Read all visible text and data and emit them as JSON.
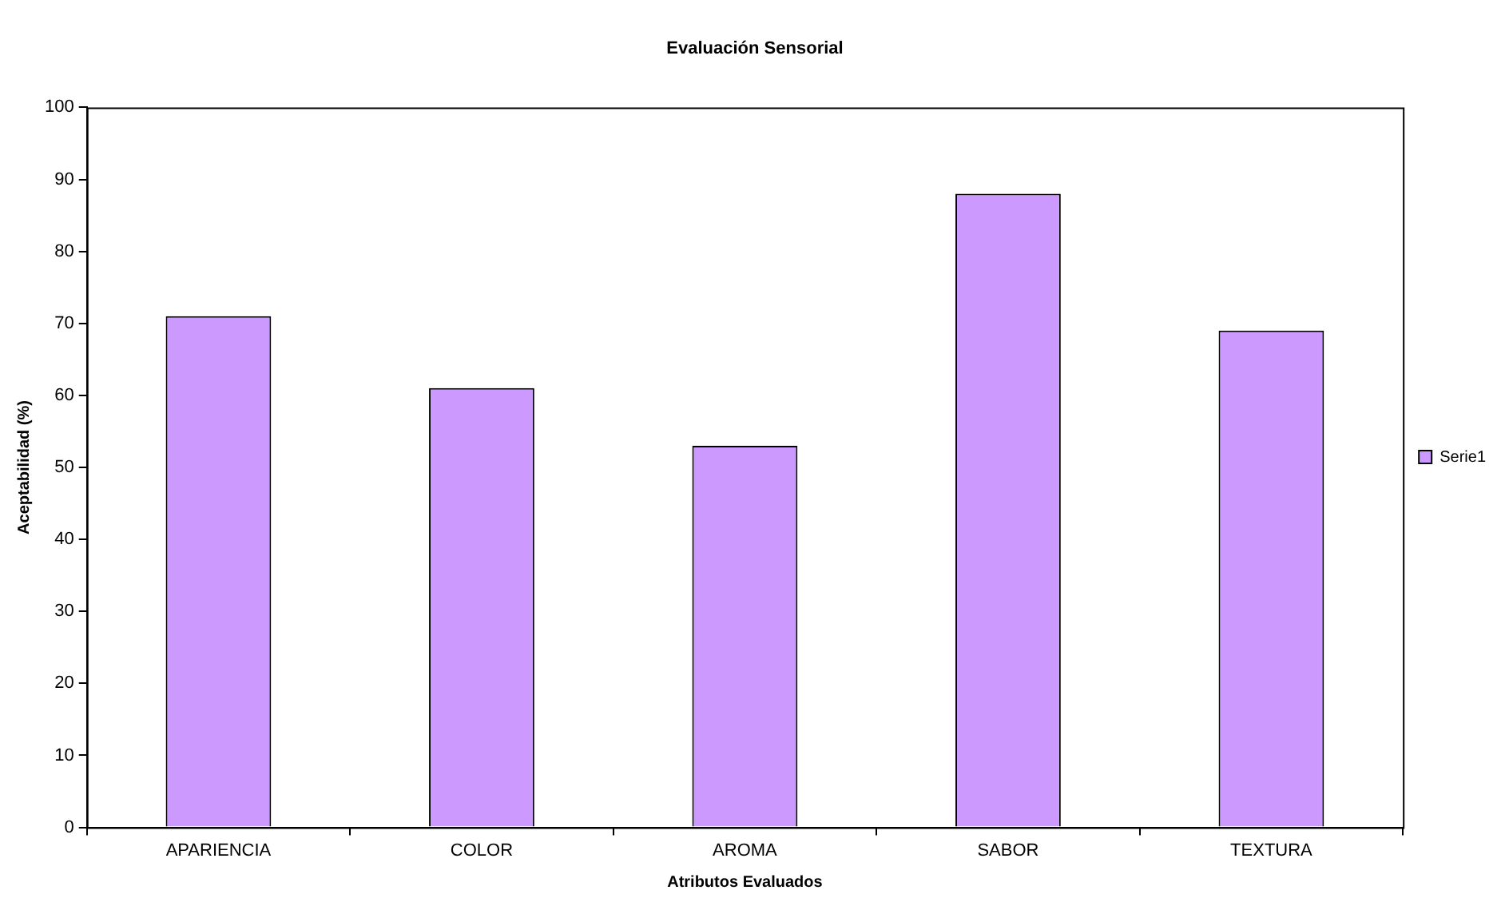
{
  "chart_data": {
    "type": "bar",
    "title": "Evaluación Sensorial",
    "xlabel": "Atributos Evaluados",
    "ylabel": "Aceptabilidad (%)",
    "categories": [
      "APARIENCIA",
      "COLOR",
      "AROMA",
      "SABOR",
      "TEXTURA"
    ],
    "series": [
      {
        "name": "Serie1",
        "color": "#cc99ff",
        "values": [
          71,
          61,
          53,
          88,
          69
        ]
      }
    ],
    "ylim": [
      0,
      100
    ],
    "yticks": [
      0,
      10,
      20,
      30,
      40,
      50,
      60,
      70,
      80,
      90,
      100
    ],
    "grid": false,
    "legend": "right"
  }
}
